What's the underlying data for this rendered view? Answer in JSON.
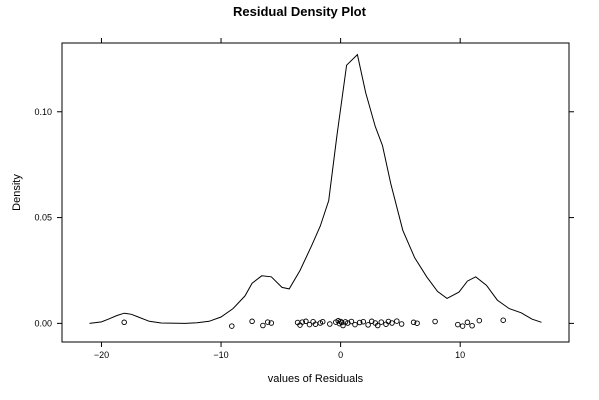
{
  "chart_data": {
    "type": "line",
    "title": "Residual Density Plot",
    "xlabel": "values of Residuals",
    "ylabel": "Density",
    "xlim": [
      -23.3,
      19.1
    ],
    "ylim": [
      -0.0088,
      0.1325
    ],
    "x_ticks": [
      -20,
      -10,
      0,
      10
    ],
    "x_tick_labels": [
      "−20",
      "−10",
      "0",
      "10"
    ],
    "y_ticks": [
      0.0,
      0.05,
      0.1
    ],
    "y_tick_labels": [
      "0.00",
      "0.05",
      "0.10"
    ],
    "grid": false,
    "legend": "none",
    "series": [
      {
        "kind": "density-line",
        "x": [
          -21,
          -20,
          -19.4,
          -18.7,
          -18.1,
          -17.5,
          -17,
          -16,
          -15,
          -13,
          -12,
          -11,
          -10,
          -9,
          -8,
          -7.4,
          -6.6,
          -5.8,
          -4.9,
          -4.3,
          -3.4,
          -2.4,
          -1.7,
          -1,
          -0.3,
          0.5,
          1.4,
          2.1,
          2.9,
          3.5,
          4.2,
          5.2,
          6.2,
          7.2,
          8.1,
          8.9,
          9.9,
          10.6,
          11.3,
          12.2,
          13.1,
          14.1,
          15.1,
          16,
          16.8
        ],
        "y": [
          0.0,
          0.0007,
          0.002,
          0.0037,
          0.0048,
          0.0043,
          0.0032,
          0.001,
          0.0002,
          0.0,
          0.0003,
          0.001,
          0.003,
          0.007,
          0.013,
          0.019,
          0.0225,
          0.022,
          0.017,
          0.0163,
          0.025,
          0.037,
          0.046,
          0.058,
          0.089,
          0.122,
          0.127,
          0.109,
          0.093,
          0.084,
          0.066,
          0.044,
          0.031,
          0.022,
          0.0151,
          0.0118,
          0.0148,
          0.02,
          0.022,
          0.018,
          0.011,
          0.007,
          0.005,
          0.002,
          0.0005
        ]
      },
      {
        "kind": "residual-points",
        "x": [
          -18.1,
          -9.1,
          -7.4,
          -6.5,
          -6.1,
          -5.8,
          -3.6,
          -3.4,
          -3.2,
          -2.9,
          -2.6,
          -2.3,
          -2.1,
          -1.7,
          -1.5,
          -0.9,
          -0.4,
          -0.2,
          -0.1,
          0.0,
          0.1,
          0.2,
          0.4,
          0.6,
          0.9,
          1.2,
          1.6,
          1.9,
          2.3,
          2.6,
          2.9,
          3.1,
          3.4,
          3.8,
          4.0,
          4.3,
          4.7,
          5.1,
          6.1,
          6.4,
          7.9,
          9.8,
          10.2,
          10.6,
          11.0,
          11.6,
          13.6
        ],
        "y": [
          0.0005,
          -0.0013,
          0.001,
          -0.001,
          0.0006,
          0.0002,
          0.0004,
          -0.0008,
          0.0006,
          0.001,
          -0.0006,
          0.0008,
          -0.0004,
          0.0002,
          0.0008,
          -0.0003,
          0.0006,
          0.0012,
          -0.0001,
          0.0009,
          0.0004,
          -0.001,
          0.0007,
          0.0002,
          0.0009,
          -0.0006,
          0.0004,
          0.0008,
          -0.0007,
          0.001,
          0.0002,
          -0.001,
          0.0006,
          -0.0004,
          0.0009,
          0.0002,
          0.0011,
          -0.0003,
          0.0005,
          0.0001,
          0.0009,
          -0.0006,
          -0.0013,
          0.0005,
          -0.0011,
          0.0013,
          0.0015
        ]
      }
    ]
  }
}
